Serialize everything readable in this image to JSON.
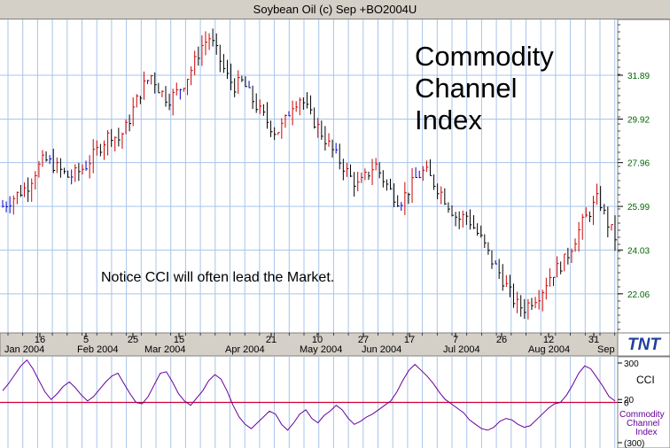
{
  "title": "Soybean Oil (c) Sep +BO2004U",
  "annotation_title": [
    "Commodity",
    "Channel",
    "Index"
  ],
  "annotation_note": "Notice CCI will often lead the Market.",
  "logo_text": "TNT",
  "colors": {
    "grid": "#a8c4e8",
    "up_bar": "#cc0000",
    "down_bar": "#000000",
    "flat_bar": "#0000cc",
    "price_axis_text": "#006600",
    "cci_line": "#660099",
    "zero_line": "#cc0033",
    "panel_bg": "#ffffff",
    "axis_panel_bg": "#d4d0c8"
  },
  "chart_data": [
    {
      "type": "ohlc",
      "title": "Soybean Oil (c) Sep +BO2004U",
      "yticks": [
        "31.89",
        "29.92",
        "27.96",
        "25.99",
        "24.03",
        "22.06"
      ],
      "ytick_values": [
        31.89,
        29.92,
        27.96,
        25.99,
        24.03,
        22.06
      ],
      "ylim": [
        20.3,
        34.4
      ],
      "x_day_labels": [
        "16",
        "5",
        "25",
        "15",
        "21",
        "10",
        "27",
        "17",
        "7",
        "26",
        "12",
        "31"
      ],
      "x_month_labels": [
        "Jan 2004",
        "Feb 2004",
        "Mar 2004",
        "Apr 2004",
        "May 2004",
        "Jun 2004",
        "Jul 2004",
        "Aug 2004",
        "Sep"
      ],
      "grid": true,
      "bars_summary_close": [
        26.0,
        26.3,
        26.6,
        26.9,
        27.6,
        28.1,
        27.9,
        27.6,
        27.3,
        27.5,
        27.8,
        28.3,
        28.8,
        29.3,
        29.0,
        29.6,
        30.6,
        31.4,
        31.9,
        31.2,
        30.8,
        31.1,
        31.6,
        32.3,
        33.2,
        33.6,
        32.8,
        31.9,
        31.4,
        31.6,
        30.9,
        30.3,
        29.8,
        29.3,
        29.7,
        30.6,
        30.9,
        30.2,
        29.6,
        29.0,
        28.4,
        27.9,
        27.3,
        26.9,
        27.4,
        27.9,
        27.2,
        26.6,
        26.2,
        26.7,
        27.3,
        27.6,
        27.1,
        26.6,
        26.0,
        25.4,
        25.6,
        25.0,
        24.4,
        23.6,
        23.0,
        22.3,
        21.6,
        21.4,
        21.8,
        22.1,
        22.8,
        23.2,
        23.6,
        24.4,
        25.2,
        25.8,
        26.4,
        25.3,
        24.6
      ]
    },
    {
      "type": "line",
      "series": [
        {
          "name": "CCI",
          "values": [
            80,
            130,
            190,
            250,
            290,
            230,
            150,
            70,
            20,
            60,
            110,
            140,
            100,
            50,
            10,
            40,
            90,
            140,
            180,
            200,
            130,
            60,
            0,
            -10,
            40,
            120,
            200,
            210,
            140,
            60,
            10,
            -20,
            30,
            80,
            150,
            190,
            160,
            80,
            -20,
            -100,
            -150,
            -180,
            -140,
            -100,
            -60,
            -80,
            -150,
            -190,
            -140,
            -80,
            -50,
            -110,
            -140,
            -90,
            -60,
            -20,
            -50,
            -110,
            -150,
            -130,
            -100,
            -80,
            -50,
            -20,
            10,
            70,
            150,
            220,
            260,
            220,
            180,
            130,
            70,
            20,
            -10,
            -40,
            -70,
            -120,
            -150,
            -180,
            -190,
            -170,
            -130,
            -110,
            -120,
            -150,
            -170,
            -160,
            -120,
            -80,
            -40,
            -10,
            0,
            50,
            120,
            200,
            250,
            230,
            170,
            110,
            40,
            10
          ]
        }
      ],
      "yticks": [
        "300",
        "20",
        "0",
        "(300)"
      ],
      "ylim": [
        -300,
        300
      ],
      "label_short": "CCI",
      "label_long": [
        "Commodity",
        "Channel",
        "Index"
      ]
    }
  ]
}
